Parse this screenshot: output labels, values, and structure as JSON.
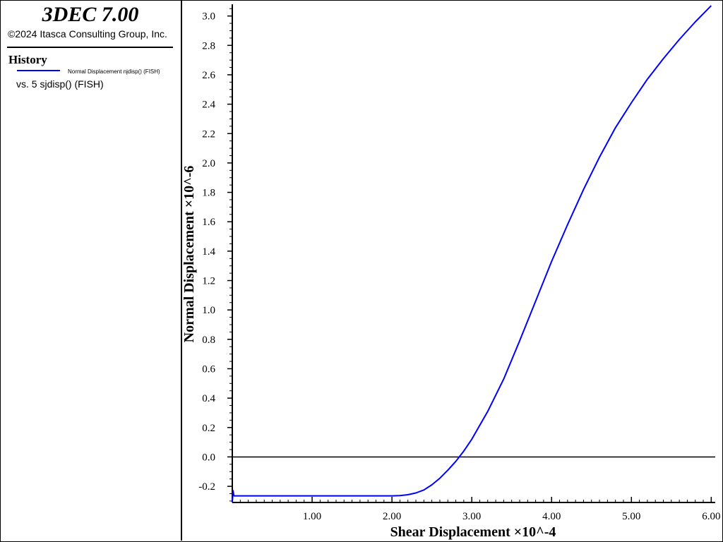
{
  "header": {
    "app_title": "3DEC 7.00",
    "copyright": "©2024 Itasca Consulting Group, Inc."
  },
  "legend": {
    "heading": "History",
    "entry_label": "Normal Displacement njdisp() (FISH)",
    "vs_label": "vs. 5 sjdisp() (FISH)",
    "line_color": "#0000ff"
  },
  "chart_data": {
    "type": "line",
    "title": "",
    "xlabel": "Shear Displacement ×10^-4",
    "ylabel": "Normal Displacement ×10^-6",
    "xlim": [
      0.0,
      6.05
    ],
    "ylim": [
      -0.31,
      3.08
    ],
    "x_ticks": [
      1.0,
      2.0,
      3.0,
      4.0,
      5.0,
      6.0
    ],
    "x_tick_labels": [
      "1.00",
      "2.00",
      "3.00",
      "4.00",
      "5.00",
      "6.00"
    ],
    "y_ticks": [
      -0.2,
      0.0,
      0.2,
      0.4,
      0.6,
      0.8,
      1.0,
      1.2,
      1.4,
      1.6,
      1.8,
      2.0,
      2.2,
      2.4,
      2.6,
      2.8,
      3.0
    ],
    "y_tick_labels": [
      "-0.2",
      "0.0",
      "0.2",
      "0.4",
      "0.6",
      "0.8",
      "1.0",
      "1.2",
      "1.4",
      "1.6",
      "1.8",
      "2.0",
      "2.2",
      "2.4",
      "2.6",
      "2.8",
      "3.0"
    ],
    "zero_line": true,
    "grid": false,
    "series": [
      {
        "name": "Normal Displacement njdisp() (FISH)",
        "color": "#0000ff",
        "x": [
          0.0,
          0.01,
          0.02,
          0.5,
          1.0,
          1.5,
          2.0,
          2.1,
          2.2,
          2.3,
          2.4,
          2.5,
          2.6,
          2.7,
          2.8,
          2.9,
          3.0,
          3.2,
          3.4,
          3.6,
          3.8,
          4.0,
          4.2,
          4.4,
          4.6,
          4.8,
          5.0,
          5.2,
          5.4,
          5.6,
          5.8,
          6.0
        ],
        "y": [
          -0.31,
          -0.23,
          -0.265,
          -0.265,
          -0.265,
          -0.265,
          -0.265,
          -0.263,
          -0.257,
          -0.245,
          -0.225,
          -0.19,
          -0.145,
          -0.09,
          -0.03,
          0.04,
          0.12,
          0.31,
          0.53,
          0.79,
          1.06,
          1.33,
          1.58,
          1.82,
          2.04,
          2.24,
          2.41,
          2.57,
          2.71,
          2.84,
          2.96,
          3.07
        ]
      }
    ]
  }
}
